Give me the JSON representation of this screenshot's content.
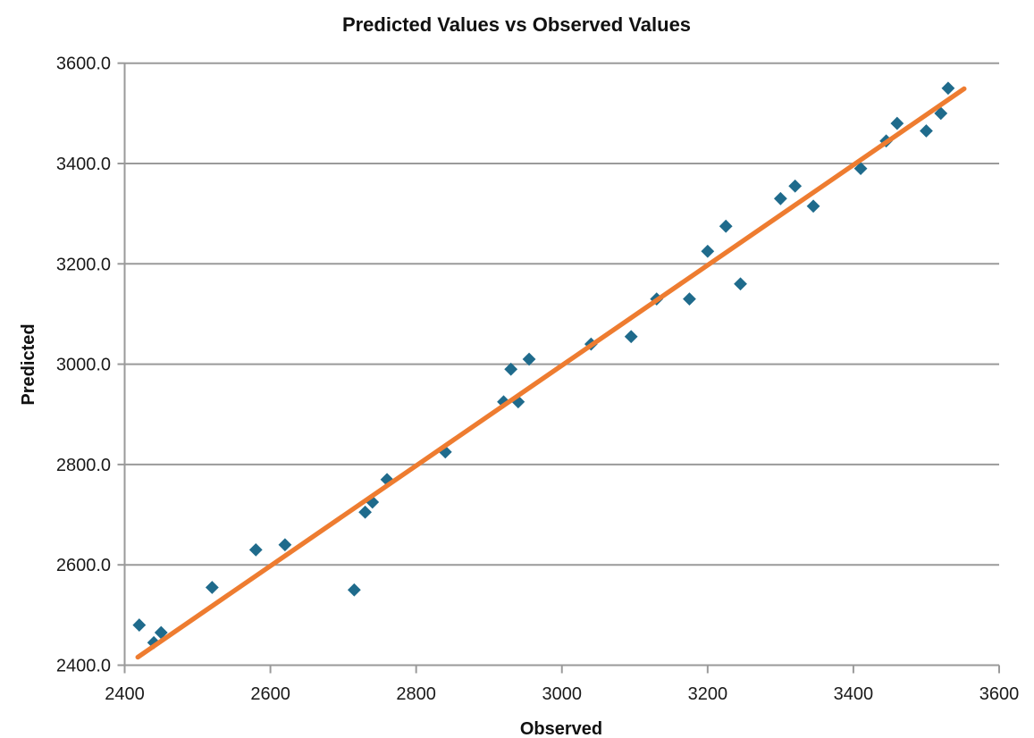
{
  "chart_data": {
    "type": "scatter",
    "title": "Predicted Values vs Observed Values",
    "xlabel": "Observed",
    "ylabel": "Predicted",
    "xlim": [
      2400,
      3600
    ],
    "ylim": [
      2400,
      3600
    ],
    "x_ticks": {
      "values": [
        2400,
        2600,
        2800,
        3000,
        3200,
        3400,
        3600
      ],
      "labels": [
        "2400",
        "2600",
        "2800",
        "3000",
        "3200",
        "3400",
        "3600"
      ]
    },
    "y_ticks": {
      "values": [
        2400,
        2600,
        2800,
        3000,
        3200,
        3400,
        3600
      ],
      "labels": [
        "2400.0",
        "2600.0",
        "2800.0",
        "3000.0",
        "3200.0",
        "3400.0",
        "3600.0"
      ]
    },
    "grid": "horizontal-only",
    "legend": "none",
    "series": [
      {
        "name": "predicted-vs-observed-points",
        "type": "scatter",
        "marker": "diamond",
        "color": "#1F6B8C",
        "points": [
          [
            2420,
            2480
          ],
          [
            2440,
            2445
          ],
          [
            2450,
            2465
          ],
          [
            2520,
            2555
          ],
          [
            2580,
            2630
          ],
          [
            2620,
            2640
          ],
          [
            2715,
            2550
          ],
          [
            2730,
            2705
          ],
          [
            2740,
            2725
          ],
          [
            2760,
            2770
          ],
          [
            2840,
            2825
          ],
          [
            2920,
            2925
          ],
          [
            2930,
            2990
          ],
          [
            2940,
            2925
          ],
          [
            2955,
            3010
          ],
          [
            3040,
            3040
          ],
          [
            3095,
            3055
          ],
          [
            3130,
            3130
          ],
          [
            3175,
            3130
          ],
          [
            3200,
            3225
          ],
          [
            3225,
            3275
          ],
          [
            3245,
            3160
          ],
          [
            3300,
            3330
          ],
          [
            3320,
            3355
          ],
          [
            3345,
            3315
          ],
          [
            3410,
            3390
          ],
          [
            3445,
            3445
          ],
          [
            3460,
            3480
          ],
          [
            3500,
            3465
          ],
          [
            3520,
            3500
          ],
          [
            3530,
            3550
          ]
        ]
      },
      {
        "name": "linear-trendline",
        "type": "line",
        "color": "#EE7C30",
        "endpoints": [
          [
            2418,
            2416
          ],
          [
            3552,
            3549
          ]
        ]
      }
    ],
    "colors": {
      "background": "#FFFFFF",
      "point": "#1F6B8C",
      "trendline": "#EE7C30",
      "gridline": "#9A9A9A",
      "axis": "#9A9A9A",
      "tick_label": "#1A1A1A",
      "title": "#111111"
    }
  }
}
